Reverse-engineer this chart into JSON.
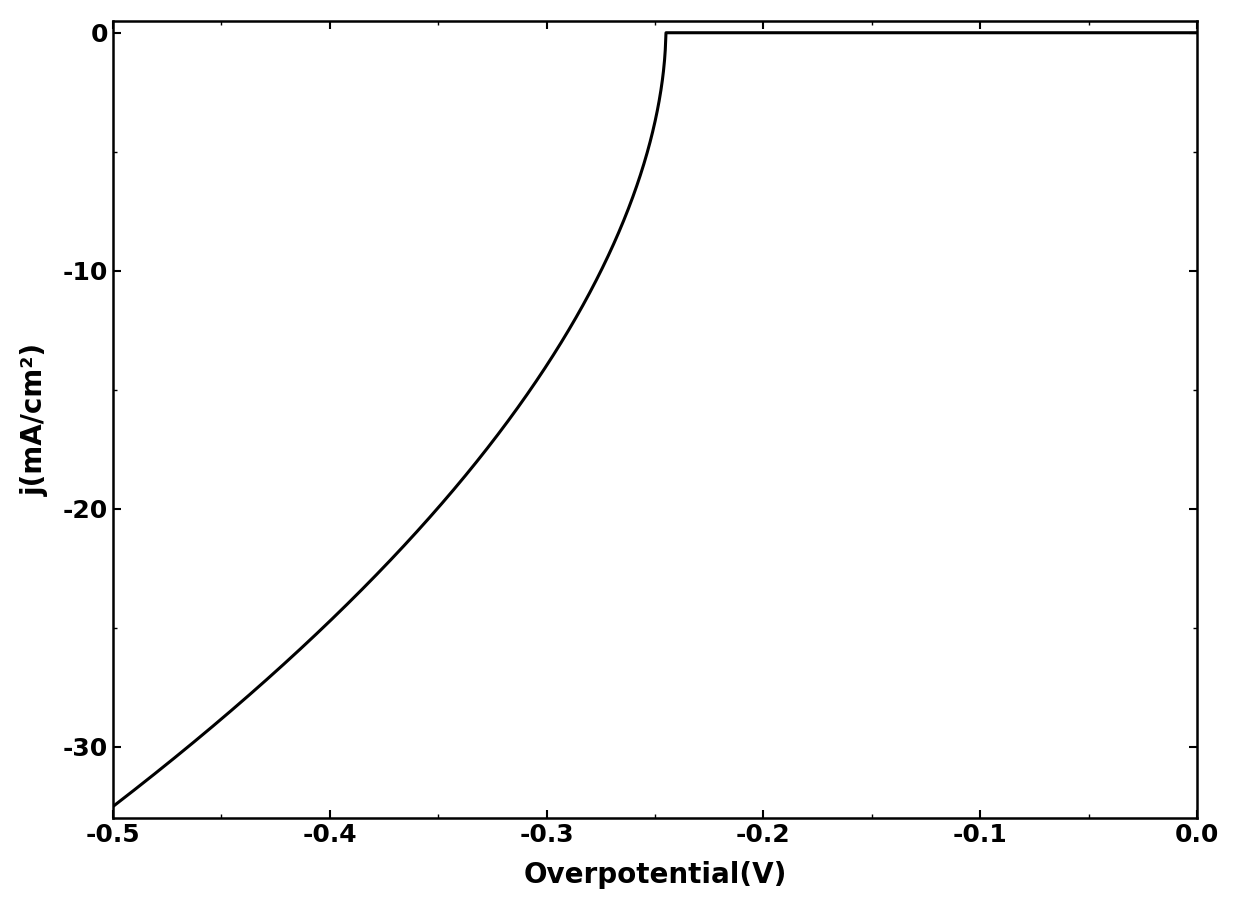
{
  "title": "",
  "xlabel": "Overpotential(V)",
  "ylabel": "j(mA/cm²)",
  "xlim": [
    -0.5,
    0.0
  ],
  "ylim": [
    -33,
    0.5
  ],
  "xticks": [
    -0.5,
    -0.4,
    -0.3,
    -0.2,
    -0.1,
    0.0
  ],
  "yticks": [
    0,
    -10,
    -20,
    -30
  ],
  "line_color": "#000000",
  "line_width": 2.2,
  "background_color": "#ffffff",
  "xlabel_fontsize": 20,
  "ylabel_fontsize": 20,
  "tick_fontsize": 18,
  "eta_onset": -0.245,
  "j_limit": -32.5,
  "power": 0.55
}
